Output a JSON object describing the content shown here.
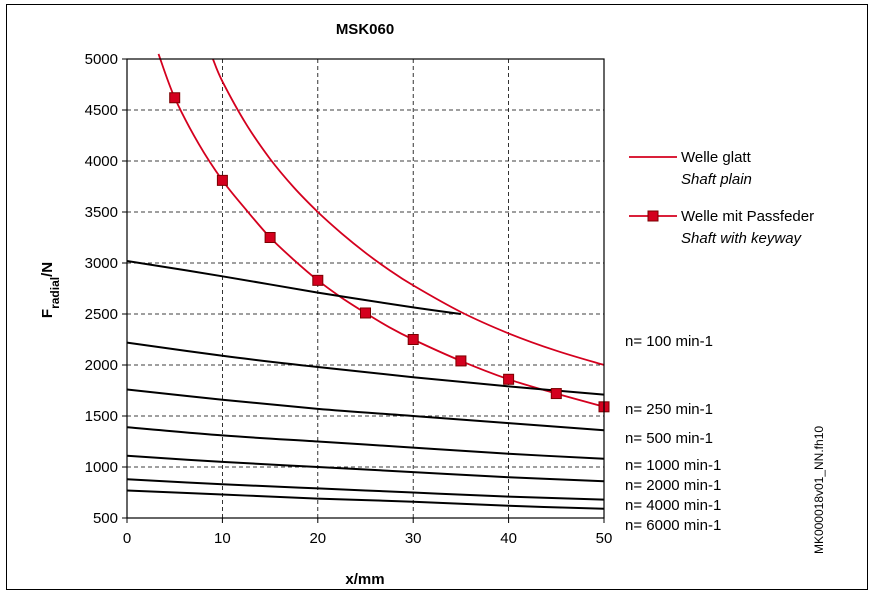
{
  "chart_data": {
    "type": "line",
    "title": "MSK060",
    "xlabel": "x/mm",
    "ylabel_main": "F",
    "ylabel_sub": "radial",
    "ylabel_unit": "/N",
    "xlim": [
      0,
      50
    ],
    "ylim": [
      500,
      5000
    ],
    "x_ticks": [
      0,
      10,
      20,
      30,
      40,
      50
    ],
    "y_ticks": [
      500,
      1000,
      1500,
      2000,
      2500,
      3000,
      3500,
      4000,
      4500,
      5000
    ],
    "grid": true,
    "legend_position": "right",
    "series": [
      {
        "name": "Welle glatt",
        "name_en": "Shaft plain",
        "color": "#d4001e",
        "marker": "none",
        "x": [
          9,
          10,
          12.5,
          15,
          17.5,
          20,
          22.5,
          25,
          27.5,
          30,
          35,
          40,
          45,
          50
        ],
        "y": [
          5000,
          4780,
          4360,
          4020,
          3740,
          3500,
          3290,
          3100,
          2930,
          2780,
          2520,
          2310,
          2140,
          2000
        ]
      },
      {
        "name": "Welle mit Passfeder",
        "name_en": "Shaft with keyway",
        "color": "#d4001e",
        "marker": "square",
        "x": [
          3.3,
          5,
          7.5,
          10,
          12.5,
          15,
          17.5,
          20,
          22.5,
          25,
          27.5,
          30,
          35,
          40,
          45,
          50
        ],
        "y": [
          5050,
          4620,
          4170,
          3810,
          3520,
          3250,
          3030,
          2830,
          2660,
          2510,
          2370,
          2250,
          2040,
          1860,
          1720,
          1590
        ],
        "marker_x": [
          5,
          10,
          15,
          20,
          25,
          30,
          35,
          40,
          45,
          50
        ],
        "marker_y": [
          4620,
          3810,
          3250,
          2830,
          2510,
          2250,
          2040,
          1860,
          1720,
          1590
        ]
      },
      {
        "name": "n= 100 min-1",
        "color": "#000000",
        "marker": "none",
        "x": [
          0,
          10,
          20,
          30,
          35
        ],
        "y": [
          3020,
          2870,
          2710,
          2565,
          2500
        ]
      },
      {
        "name": "n= 250 min-1",
        "color": "#000000",
        "marker": "none",
        "x": [
          0,
          10,
          20,
          30,
          40,
          50
        ],
        "y": [
          2220,
          2090,
          1980,
          1880,
          1790,
          1710
        ]
      },
      {
        "name": "n= 500 min-1",
        "color": "#000000",
        "marker": "none",
        "x": [
          0,
          10,
          20,
          30,
          40,
          50
        ],
        "y": [
          1760,
          1660,
          1570,
          1500,
          1430,
          1360
        ]
      },
      {
        "name": "n= 1000 min-1",
        "color": "#000000",
        "marker": "none",
        "x": [
          0,
          10,
          20,
          30,
          40,
          50
        ],
        "y": [
          1390,
          1310,
          1250,
          1190,
          1130,
          1080
        ]
      },
      {
        "name": "n= 2000 min-1",
        "color": "#000000",
        "marker": "none",
        "x": [
          0,
          10,
          20,
          30,
          40,
          50
        ],
        "y": [
          1110,
          1050,
          1000,
          950,
          900,
          860
        ]
      },
      {
        "name": "n= 4000 min-1",
        "color": "#000000",
        "marker": "none",
        "x": [
          0,
          10,
          20,
          30,
          40,
          50
        ],
        "y": [
          880,
          830,
          790,
          750,
          710,
          680
        ]
      },
      {
        "name": "n= 6000 min-1",
        "color": "#000000",
        "marker": "none",
        "x": [
          0,
          10,
          20,
          30,
          40,
          50
        ],
        "y": [
          770,
          730,
          690,
          660,
          620,
          590
        ]
      }
    ],
    "speed_labels": [
      "n= 100 min-1",
      "n= 250 min-1",
      "n= 500 min-1",
      "n= 1000 min-1",
      "n= 2000 min-1",
      "n= 4000 min-1",
      "n= 6000 min-1"
    ],
    "legend": [
      {
        "label": "Welle glatt",
        "sublabel": "Shaft plain",
        "marker": "none",
        "color": "#d4001e"
      },
      {
        "label": "Welle mit Passfeder",
        "sublabel": "Shaft with keyway",
        "marker": "square",
        "color": "#d4001e"
      }
    ],
    "side_note": "MK000018v01_NN.fh10"
  }
}
